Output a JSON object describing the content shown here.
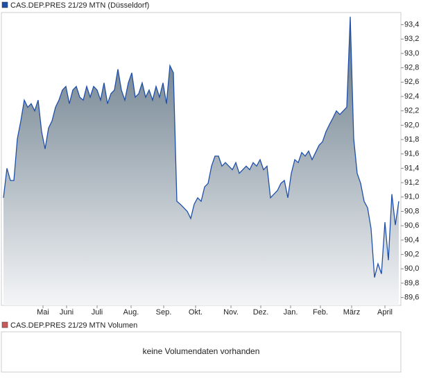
{
  "chart_data": [
    {
      "type": "area",
      "series": [
        {
          "name": "CAS.DEP.PRES 21/29 MTN (Düsseldorf)",
          "color": "#1f4fa8",
          "values": [
            90.99,
            91.4,
            91.23,
            91.23,
            91.81,
            92.06,
            92.35,
            92.25,
            92.3,
            92.2,
            92.35,
            91.91,
            91.67,
            91.96,
            92.06,
            92.25,
            92.35,
            92.49,
            92.54,
            92.3,
            92.49,
            92.54,
            92.39,
            92.35,
            92.54,
            92.39,
            92.54,
            92.49,
            92.35,
            92.59,
            92.3,
            92.44,
            92.49,
            92.78,
            92.49,
            92.35,
            92.59,
            92.73,
            92.39,
            92.44,
            92.59,
            92.39,
            92.49,
            92.35,
            92.54,
            92.39,
            92.59,
            92.3,
            92.83,
            92.73,
            90.94,
            90.9,
            90.85,
            90.8,
            90.7,
            90.9,
            90.99,
            90.94,
            91.14,
            91.19,
            91.43,
            91.57,
            91.57,
            91.43,
            91.48,
            91.43,
            91.38,
            91.48,
            91.33,
            91.38,
            91.43,
            91.38,
            91.48,
            91.43,
            91.52,
            91.38,
            91.43,
            90.99,
            91.04,
            91.09,
            91.19,
            91.23,
            90.99,
            91.33,
            91.52,
            91.48,
            91.62,
            91.57,
            91.64,
            91.52,
            91.62,
            91.72,
            91.77,
            91.91,
            92.01,
            92.1,
            92.2,
            92.15,
            92.2,
            92.25,
            93.51,
            91.81,
            91.33,
            91.19,
            90.94,
            90.85,
            90.56,
            89.88,
            90.07,
            89.93,
            90.65,
            90.12,
            91.04,
            90.61,
            90.94
          ]
        }
      ],
      "xlim": [
        -0.6,
        114.6
      ],
      "xticks": [
        {
          "value": 11.4,
          "label": "Mai"
        },
        {
          "value": 18.2,
          "label": "Juni"
        },
        {
          "value": 27,
          "label": "Juli"
        },
        {
          "value": 36.8,
          "label": "Aug."
        },
        {
          "value": 46.2,
          "label": "Sep."
        },
        {
          "value": 55.4,
          "label": "Okt."
        },
        {
          "value": 65.6,
          "label": "Nov."
        },
        {
          "value": 74.2,
          "label": "Dez."
        },
        {
          "value": 82.8,
          "label": "Jan."
        },
        {
          "value": 91.4,
          "label": "Feb."
        },
        {
          "value": 100.4,
          "label": "März"
        },
        {
          "value": 110,
          "label": "April"
        }
      ],
      "ylim": [
        89.49,
        93.57
      ],
      "yticks": [
        {
          "value": 89.6,
          "label": "89,6"
        },
        {
          "value": 89.8,
          "label": "89,8"
        },
        {
          "value": 90.0,
          "label": "90,0"
        },
        {
          "value": 90.2,
          "label": "90,2"
        },
        {
          "value": 90.4,
          "label": "90,4"
        },
        {
          "value": 90.6,
          "label": "90,6"
        },
        {
          "value": 90.8,
          "label": "90,8"
        },
        {
          "value": 91.0,
          "label": "91,0"
        },
        {
          "value": 91.2,
          "label": "91,2"
        },
        {
          "value": 91.4,
          "label": "91,4"
        },
        {
          "value": 91.6,
          "label": "91,6"
        },
        {
          "value": 91.8,
          "label": "91,8"
        },
        {
          "value": 92.0,
          "label": "92,0"
        },
        {
          "value": 92.2,
          "label": "92,2"
        },
        {
          "value": 92.4,
          "label": "92,4"
        },
        {
          "value": 92.6,
          "label": "92,6"
        },
        {
          "value": 92.8,
          "label": "92,8"
        },
        {
          "value": 93.0,
          "label": "93,0"
        },
        {
          "value": 93.2,
          "label": "93,2"
        },
        {
          "value": 93.4,
          "label": "93,4"
        }
      ]
    },
    {
      "type": "empty",
      "series": [
        {
          "name": "CAS.DEP.PRES 21/29 MTN Volumen",
          "color": "#c85a5a"
        }
      ],
      "annotation": "keine Volumendaten vorhanden"
    }
  ]
}
